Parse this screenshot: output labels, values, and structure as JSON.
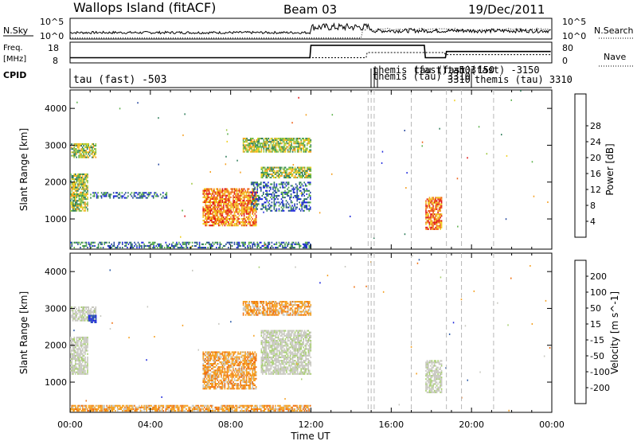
{
  "header": {
    "site": "Wallops Island (fitACF)",
    "beam": "Beam 03",
    "date": "19/Dec/2011"
  },
  "strip": {
    "nsky_label": "N.Sky",
    "nsky_ticks": [
      "10^5",
      "10^0"
    ],
    "nsearch_label": "N.Search",
    "nsearch_ticks": [
      "10^5",
      "10^0"
    ],
    "freq_label_1": "Freq.",
    "freq_label_2": "[MHz]",
    "freq_ticks": [
      "18",
      "8"
    ],
    "nave_label": "Nave",
    "nave_ticks": [
      "80",
      "0"
    ],
    "cpid_label": "CPID"
  },
  "cpid": {
    "main_label": "tau (fast) -503",
    "overlap_labels": [
      "themis (fast) -503",
      "themis (tau) 3310",
      "tau (fast) 150",
      "tau (fast) -3150"
    ],
    "later_label_1": "3310",
    "later_label_2": "themis (tau)  3310"
  },
  "chart_data": [
    {
      "type": "heatmap",
      "title": "Power",
      "ylabel": "Slant Range [km]",
      "xlabel": "Time UT",
      "ylim": [
        180,
        4500
      ],
      "x_ticks": [
        "00:00",
        "04:00",
        "08:00",
        "12:00",
        "16:00",
        "20:00",
        "00:00"
      ],
      "y_ticks": [
        1000,
        2000,
        3000,
        4000
      ],
      "colorbar": {
        "label": "Power [dB]",
        "ticks": [
          4,
          8,
          12,
          16,
          20,
          24,
          28
        ],
        "colors": [
          "#1e28dc",
          "#284aa0",
          "#2f7d5a",
          "#5bb04a",
          "#a0c840",
          "#f0d020",
          "#f5a020",
          "#f06018",
          "#e01818"
        ]
      },
      "regions": [
        {
          "t0": 0.05,
          "t1": 1.3,
          "r0": 2650,
          "r1": 3050,
          "level": "mid"
        },
        {
          "t0": 0.0,
          "t1": 0.9,
          "r0": 1200,
          "r1": 2200,
          "level": "mid"
        },
        {
          "t0": 1.0,
          "t1": 4.8,
          "r0": 1550,
          "r1": 1700,
          "level": "low"
        },
        {
          "t0": 6.6,
          "t1": 9.3,
          "r0": 800,
          "r1": 1800,
          "level": "high"
        },
        {
          "t0": 8.6,
          "t1": 12.0,
          "r0": 2800,
          "r1": 3200,
          "level": "mid"
        },
        {
          "t0": 9.5,
          "t1": 12.0,
          "r0": 2100,
          "r1": 2400,
          "level": "mid"
        },
        {
          "t0": 9.0,
          "t1": 12.0,
          "r0": 1200,
          "r1": 2000,
          "level": "low"
        },
        {
          "t0": 0.0,
          "t1": 12.0,
          "r0": 200,
          "r1": 380,
          "level": "low"
        },
        {
          "t0": 17.7,
          "t1": 18.5,
          "r0": 700,
          "r1": 1600,
          "level": "high"
        }
      ]
    },
    {
      "type": "heatmap",
      "title": "Velocity",
      "ylabel": "Slant Range [km]",
      "xlabel": "Time UT",
      "ylim": [
        180,
        4500
      ],
      "x_ticks": [
        "00:00",
        "04:00",
        "08:00",
        "12:00",
        "16:00",
        "20:00",
        "00:00"
      ],
      "y_ticks": [
        1000,
        2000,
        3000,
        4000
      ],
      "colorbar": {
        "label": "Velocity [m s^-1]",
        "ticks": [
          200,
          100,
          50,
          15,
          -15,
          -50,
          -100,
          -200
        ],
        "colors": [
          "#1e28dc",
          "#2a5aa8",
          "#2f8a5a",
          "#66c040",
          "#c8c8c0",
          "#f5a020",
          "#f07010",
          "#f04818",
          "#e01818"
        ]
      },
      "regions": [
        {
          "t0": 0.05,
          "t1": 1.3,
          "r0": 2650,
          "r1": 3050,
          "level": "grey"
        },
        {
          "t0": 0.9,
          "t1": 1.3,
          "r0": 2600,
          "r1": 2800,
          "level": "blue"
        },
        {
          "t0": 0.0,
          "t1": 0.9,
          "r0": 1200,
          "r1": 2200,
          "level": "grey"
        },
        {
          "t0": 6.6,
          "t1": 9.3,
          "r0": 800,
          "r1": 1800,
          "level": "orange"
        },
        {
          "t0": 8.6,
          "t1": 12.0,
          "r0": 2800,
          "r1": 3200,
          "level": "orange"
        },
        {
          "t0": 9.5,
          "t1": 12.0,
          "r0": 1200,
          "r1": 2400,
          "level": "grey"
        },
        {
          "t0": 0.0,
          "t1": 12.0,
          "r0": 200,
          "r1": 380,
          "level": "orange"
        },
        {
          "t0": 17.7,
          "t1": 18.5,
          "r0": 700,
          "r1": 1600,
          "level": "grey"
        }
      ]
    }
  ],
  "gap_lines_hours": [
    14.85,
    15.0,
    15.15,
    17.0,
    18.75,
    19.5,
    21.1
  ]
}
